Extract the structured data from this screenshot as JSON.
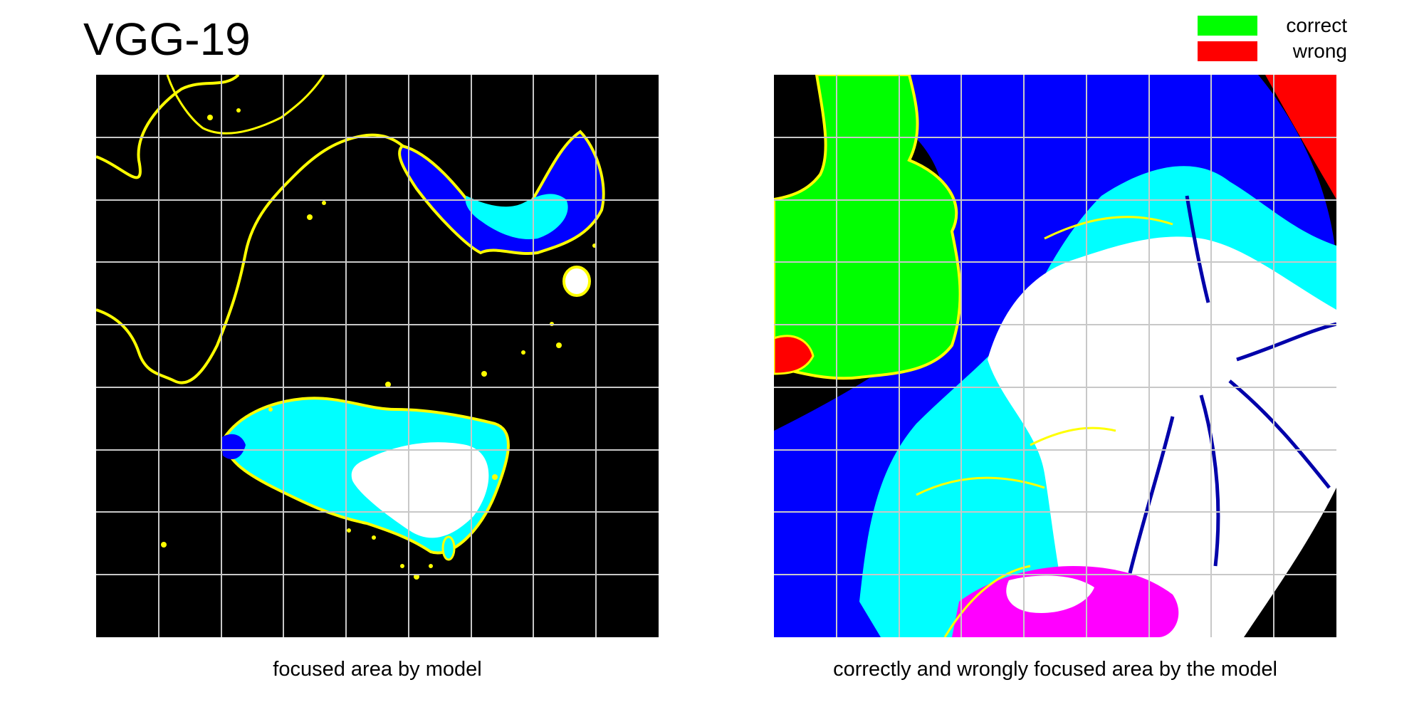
{
  "title": "VGG-19",
  "legend": [
    {
      "label": "correct",
      "color": "#00ff00"
    },
    {
      "label": "wrong",
      "color": "#ff0000"
    }
  ],
  "captions": {
    "left": "focused area by model",
    "right": "correctly and wrongly focused area by the model"
  },
  "colors": {
    "background": "#000000",
    "grid": "#c8c8c8",
    "focus_high": "#ffffff",
    "focus_mid": "#00ffff",
    "focus_low": "#0000ff",
    "outline": "#ffff00",
    "magenta": "#ff00ff"
  }
}
